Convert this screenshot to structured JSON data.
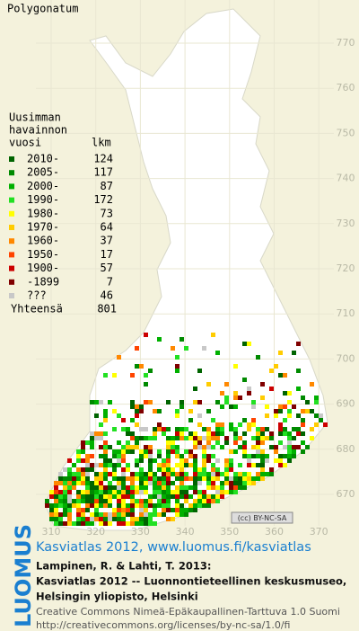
{
  "header": {
    "title": "Polygonatum"
  },
  "legend": {
    "heading": [
      "Uusimman",
      "havainnon",
      "vuosi"
    ],
    "count_heading": "lkm",
    "rows": [
      {
        "label": "2010-",
        "count": 124,
        "color": "#006400"
      },
      {
        "label": "2005-",
        "count": 117,
        "color": "#008a00"
      },
      {
        "label": "2000-",
        "count": 87,
        "color": "#00b000"
      },
      {
        "label": "1990-",
        "count": 172,
        "color": "#22e022"
      },
      {
        "label": "1980-",
        "count": 73,
        "color": "#ffff00"
      },
      {
        "label": "1970-",
        "count": 64,
        "color": "#ffcc00"
      },
      {
        "label": "1960-",
        "count": 37,
        "color": "#ff8800"
      },
      {
        "label": "1950-",
        "count": 17,
        "color": "#ff4400"
      },
      {
        "label": "1900-",
        "count": 57,
        "color": "#cc0000"
      },
      {
        "label": "-1899",
        "count": 7,
        "color": "#800000"
      },
      {
        "label": "???",
        "count": 46,
        "color": "#c8c8c8"
      }
    ],
    "total_label": "Yhteensä",
    "total": 801
  },
  "grid": {
    "y_labels": [
      770,
      760,
      750,
      740,
      730,
      720,
      710,
      700,
      690,
      680,
      670
    ],
    "x_labels": [
      310,
      320,
      330,
      340,
      350,
      360,
      370
    ]
  },
  "license_badge": "(cc) BY-NC-SA",
  "footer": {
    "logo": "LUOMUS",
    "link": "Kasviatlas 2012, www.luomus.fi/kasviatlas",
    "citation": [
      "Lampinen, R. & Lahti, T. 2013:",
      "Kasviatlas 2012 -- Luonnontieteellinen keskusmuseo,",
      "Helsingin yliopisto, Helsinki"
    ],
    "license": [
      "Creative Commons Nimeä-Epäkaupallinen-Tarttuva 1.0 Suomi",
      "http://creativecommons.org/licenses/by-nc-sa/1.0/fi"
    ]
  }
}
